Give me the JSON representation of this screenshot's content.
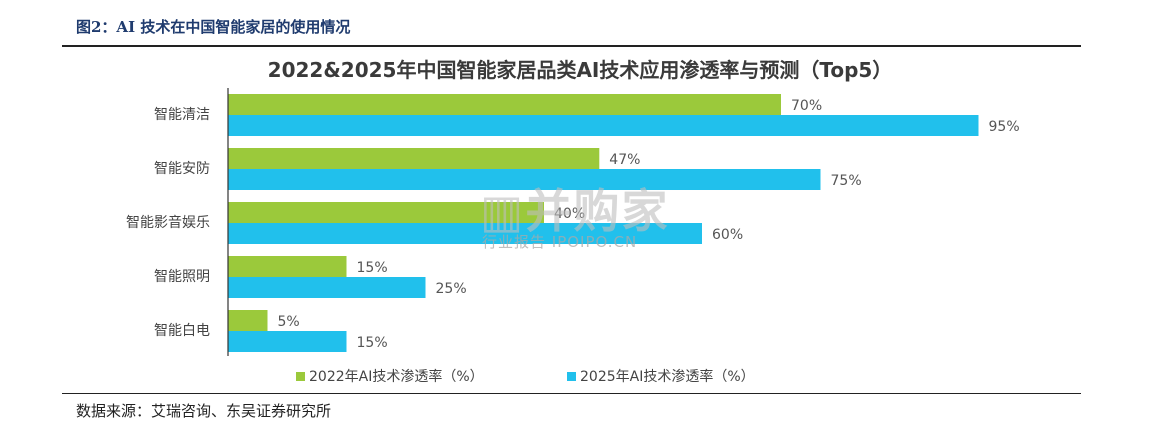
{
  "figure": {
    "caption": "图2：AI 技术在中国智能家居的使用情况",
    "source": "数据来源：艾瑞咨询、东吴证券研究所"
  },
  "watermark": {
    "main": "▥并购家",
    "sub": "行业报告 IPOIPO.CN"
  },
  "colors": {
    "series_2022": "#9bc93b",
    "series_2025": "#21c0ec",
    "axis": "#333333",
    "label_text": "#555555"
  },
  "chart_data": {
    "type": "bar",
    "orientation": "horizontal",
    "title": "2022&2025年中国智能家居品类AI技术应用渗透率与预测（Top5）",
    "categories": [
      "智能清洁",
      "智能安防",
      "智能影音娱乐",
      "智能照明",
      "智能白电"
    ],
    "series": [
      {
        "name": "2022年AI技术渗透率（%）",
        "values": [
          70,
          47,
          40,
          15,
          5
        ],
        "labels": [
          "70%",
          "47%",
          "40%",
          "15%",
          "5%"
        ]
      },
      {
        "name": "2025年AI技术渗透率（%）",
        "values": [
          95,
          75,
          60,
          25,
          15
        ],
        "labels": [
          "95%",
          "75%",
          "60%",
          "25%",
          "15%"
        ]
      }
    ],
    "xlim": [
      0,
      100
    ],
    "grid": false,
    "legend_position": "bottom"
  }
}
